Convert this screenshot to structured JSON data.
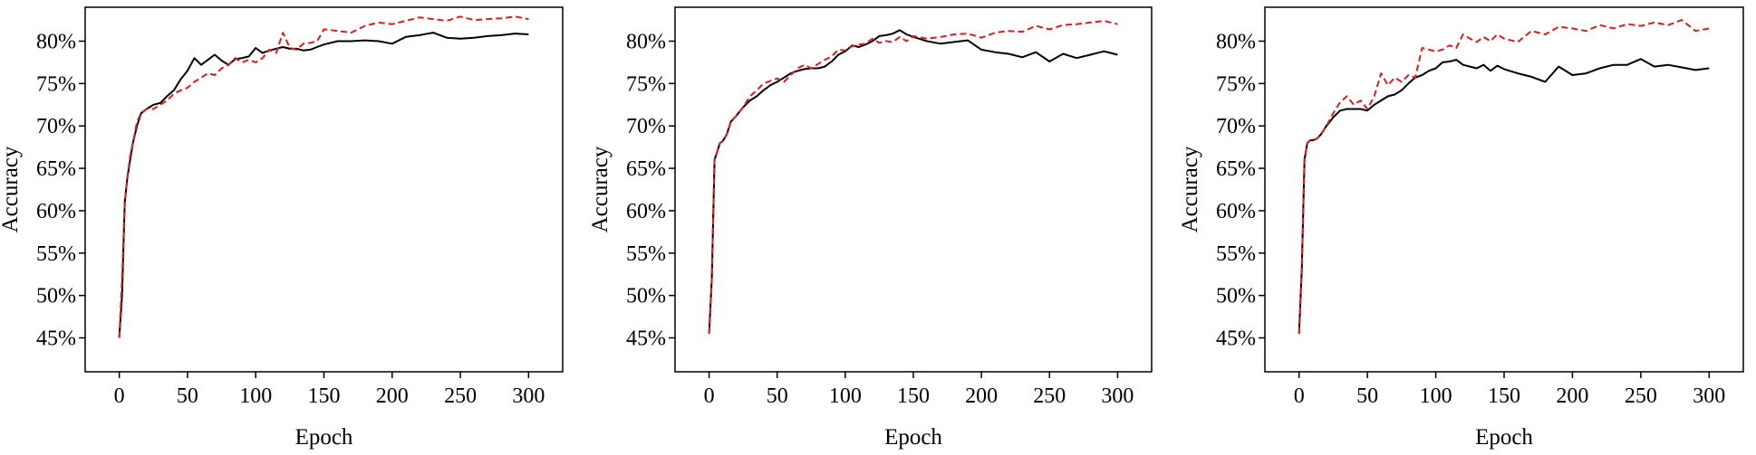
{
  "colors": {
    "series_black": "#000000",
    "series_red": "#e31a1c",
    "axis": "#000000",
    "background": "#ffffff"
  },
  "chart_data": [
    {
      "type": "line",
      "title": "",
      "xlabel": "Epoch",
      "ylabel": "Accuracy",
      "xlim": [
        -25,
        325
      ],
      "ylim": [
        0.41,
        0.84
      ],
      "xticks": [
        0,
        50,
        100,
        150,
        200,
        250,
        300
      ],
      "yticks": [
        0.45,
        0.5,
        0.55,
        0.6,
        0.65,
        0.7,
        0.75,
        0.8
      ],
      "ytick_labels": [
        "45%",
        "50%",
        "55%",
        "60%",
        "65%",
        "70%",
        "75%",
        "80%"
      ],
      "grid": false,
      "legend": "none",
      "series": [
        {
          "style": "solid",
          "color": "#000000",
          "x": [
            0,
            2,
            4,
            6,
            8,
            10,
            13,
            16,
            20,
            25,
            30,
            35,
            40,
            45,
            50,
            55,
            60,
            65,
            70,
            75,
            80,
            85,
            90,
            95,
            100,
            105,
            110,
            115,
            120,
            125,
            130,
            135,
            140,
            145,
            150,
            160,
            170,
            180,
            190,
            200,
            210,
            220,
            230,
            240,
            250,
            260,
            270,
            280,
            290,
            300
          ],
          "y": [
            0.45,
            0.5,
            0.61,
            0.64,
            0.66,
            0.68,
            0.7,
            0.715,
            0.72,
            0.725,
            0.727,
            0.735,
            0.742,
            0.755,
            0.765,
            0.78,
            0.772,
            0.778,
            0.784,
            0.777,
            0.772,
            0.779,
            0.78,
            0.782,
            0.792,
            0.786,
            0.789,
            0.791,
            0.793,
            0.791,
            0.791,
            0.789,
            0.79,
            0.793,
            0.796,
            0.8,
            0.8,
            0.801,
            0.8,
            0.797,
            0.805,
            0.807,
            0.81,
            0.804,
            0.803,
            0.804,
            0.806,
            0.807,
            0.809,
            0.808
          ]
        },
        {
          "style": "dashed",
          "color": "#e31a1c",
          "x": [
            0,
            2,
            4,
            6,
            8,
            10,
            13,
            16,
            20,
            25,
            30,
            35,
            40,
            45,
            50,
            55,
            60,
            65,
            70,
            75,
            80,
            85,
            90,
            95,
            100,
            105,
            110,
            115,
            120,
            125,
            130,
            135,
            140,
            145,
            150,
            160,
            170,
            180,
            190,
            200,
            210,
            220,
            230,
            240,
            250,
            260,
            270,
            280,
            290,
            300
          ],
          "y": [
            0.45,
            0.52,
            0.61,
            0.64,
            0.665,
            0.68,
            0.705,
            0.715,
            0.72,
            0.72,
            0.725,
            0.73,
            0.738,
            0.742,
            0.745,
            0.752,
            0.757,
            0.762,
            0.76,
            0.768,
            0.772,
            0.78,
            0.775,
            0.778,
            0.775,
            0.78,
            0.79,
            0.786,
            0.81,
            0.792,
            0.79,
            0.797,
            0.798,
            0.8,
            0.814,
            0.812,
            0.81,
            0.818,
            0.822,
            0.82,
            0.824,
            0.828,
            0.826,
            0.824,
            0.829,
            0.825,
            0.826,
            0.827,
            0.829,
            0.826
          ]
        }
      ]
    },
    {
      "type": "line",
      "title": "",
      "xlabel": "Epoch",
      "ylabel": "Accuracy",
      "xlim": [
        -25,
        325
      ],
      "ylim": [
        0.41,
        0.84
      ],
      "xticks": [
        0,
        50,
        100,
        150,
        200,
        250,
        300
      ],
      "yticks": [
        0.45,
        0.5,
        0.55,
        0.6,
        0.65,
        0.7,
        0.75,
        0.8
      ],
      "ytick_labels": [
        "45%",
        "50%",
        "55%",
        "60%",
        "65%",
        "70%",
        "75%",
        "80%"
      ],
      "grid": false,
      "legend": "none",
      "series": [
        {
          "style": "solid",
          "color": "#000000",
          "x": [
            0,
            2,
            4,
            6,
            8,
            10,
            13,
            16,
            20,
            25,
            30,
            35,
            40,
            45,
            50,
            55,
            60,
            65,
            70,
            75,
            80,
            85,
            90,
            95,
            100,
            105,
            110,
            115,
            120,
            125,
            130,
            135,
            140,
            145,
            150,
            160,
            170,
            180,
            190,
            200,
            210,
            220,
            230,
            240,
            250,
            260,
            270,
            280,
            290,
            300
          ],
          "y": [
            0.455,
            0.52,
            0.66,
            0.67,
            0.68,
            0.682,
            0.69,
            0.705,
            0.712,
            0.722,
            0.73,
            0.735,
            0.742,
            0.748,
            0.752,
            0.757,
            0.762,
            0.765,
            0.767,
            0.768,
            0.768,
            0.77,
            0.776,
            0.784,
            0.788,
            0.795,
            0.793,
            0.796,
            0.8,
            0.806,
            0.807,
            0.809,
            0.813,
            0.808,
            0.805,
            0.8,
            0.797,
            0.799,
            0.801,
            0.79,
            0.787,
            0.785,
            0.781,
            0.787,
            0.776,
            0.785,
            0.78,
            0.784,
            0.788,
            0.784
          ]
        },
        {
          "style": "dashed",
          "color": "#e31a1c",
          "x": [
            0,
            2,
            4,
            6,
            8,
            10,
            13,
            16,
            20,
            25,
            30,
            35,
            40,
            45,
            50,
            55,
            60,
            65,
            70,
            75,
            80,
            85,
            90,
            95,
            100,
            105,
            110,
            115,
            120,
            125,
            130,
            135,
            140,
            145,
            150,
            160,
            170,
            180,
            190,
            200,
            210,
            220,
            230,
            240,
            250,
            260,
            270,
            280,
            290,
            300
          ],
          "y": [
            0.455,
            0.52,
            0.66,
            0.67,
            0.68,
            0.682,
            0.69,
            0.705,
            0.712,
            0.722,
            0.735,
            0.742,
            0.75,
            0.753,
            0.756,
            0.752,
            0.76,
            0.768,
            0.772,
            0.768,
            0.773,
            0.778,
            0.782,
            0.79,
            0.789,
            0.794,
            0.796,
            0.797,
            0.803,
            0.798,
            0.8,
            0.799,
            0.805,
            0.8,
            0.806,
            0.803,
            0.805,
            0.808,
            0.809,
            0.804,
            0.81,
            0.812,
            0.811,
            0.818,
            0.814,
            0.819,
            0.82,
            0.822,
            0.824,
            0.82
          ]
        }
      ]
    },
    {
      "type": "line",
      "title": "",
      "xlabel": "Epoch",
      "ylabel": "Accuracy",
      "xlim": [
        -25,
        325
      ],
      "ylim": [
        0.41,
        0.84
      ],
      "xticks": [
        0,
        50,
        100,
        150,
        200,
        250,
        300
      ],
      "yticks": [
        0.45,
        0.5,
        0.55,
        0.6,
        0.65,
        0.7,
        0.75,
        0.8
      ],
      "ytick_labels": [
        "45%",
        "50%",
        "55%",
        "60%",
        "65%",
        "70%",
        "75%",
        "80%"
      ],
      "grid": false,
      "legend": "none",
      "series": [
        {
          "style": "solid",
          "color": "#000000",
          "x": [
            0,
            2,
            4,
            6,
            8,
            10,
            13,
            16,
            20,
            25,
            30,
            35,
            40,
            45,
            50,
            55,
            60,
            65,
            70,
            75,
            80,
            85,
            90,
            95,
            100,
            105,
            110,
            115,
            120,
            125,
            130,
            135,
            140,
            145,
            150,
            160,
            170,
            180,
            190,
            200,
            210,
            220,
            230,
            240,
            250,
            260,
            270,
            280,
            290,
            300
          ],
          "y": [
            0.455,
            0.53,
            0.66,
            0.68,
            0.683,
            0.683,
            0.685,
            0.69,
            0.7,
            0.71,
            0.718,
            0.72,
            0.72,
            0.72,
            0.718,
            0.725,
            0.73,
            0.735,
            0.737,
            0.742,
            0.75,
            0.757,
            0.76,
            0.765,
            0.768,
            0.775,
            0.776,
            0.778,
            0.772,
            0.77,
            0.768,
            0.772,
            0.765,
            0.771,
            0.767,
            0.762,
            0.758,
            0.752,
            0.77,
            0.76,
            0.762,
            0.768,
            0.772,
            0.772,
            0.779,
            0.77,
            0.772,
            0.769,
            0.766,
            0.768
          ]
        },
        {
          "style": "dashed",
          "color": "#e31a1c",
          "x": [
            0,
            2,
            4,
            6,
            8,
            10,
            13,
            16,
            20,
            25,
            30,
            35,
            40,
            45,
            50,
            55,
            60,
            65,
            70,
            75,
            80,
            85,
            90,
            95,
            100,
            105,
            110,
            115,
            120,
            125,
            130,
            135,
            140,
            145,
            150,
            160,
            170,
            180,
            190,
            200,
            210,
            220,
            230,
            240,
            250,
            260,
            270,
            280,
            290,
            300
          ],
          "y": [
            0.455,
            0.53,
            0.66,
            0.68,
            0.683,
            0.683,
            0.685,
            0.69,
            0.7,
            0.715,
            0.728,
            0.735,
            0.725,
            0.73,
            0.72,
            0.735,
            0.762,
            0.748,
            0.757,
            0.752,
            0.76,
            0.757,
            0.792,
            0.79,
            0.788,
            0.79,
            0.795,
            0.792,
            0.808,
            0.803,
            0.799,
            0.805,
            0.8,
            0.808,
            0.803,
            0.799,
            0.812,
            0.808,
            0.817,
            0.815,
            0.812,
            0.819,
            0.815,
            0.82,
            0.818,
            0.822,
            0.819,
            0.825,
            0.812,
            0.815
          ]
        }
      ]
    }
  ]
}
